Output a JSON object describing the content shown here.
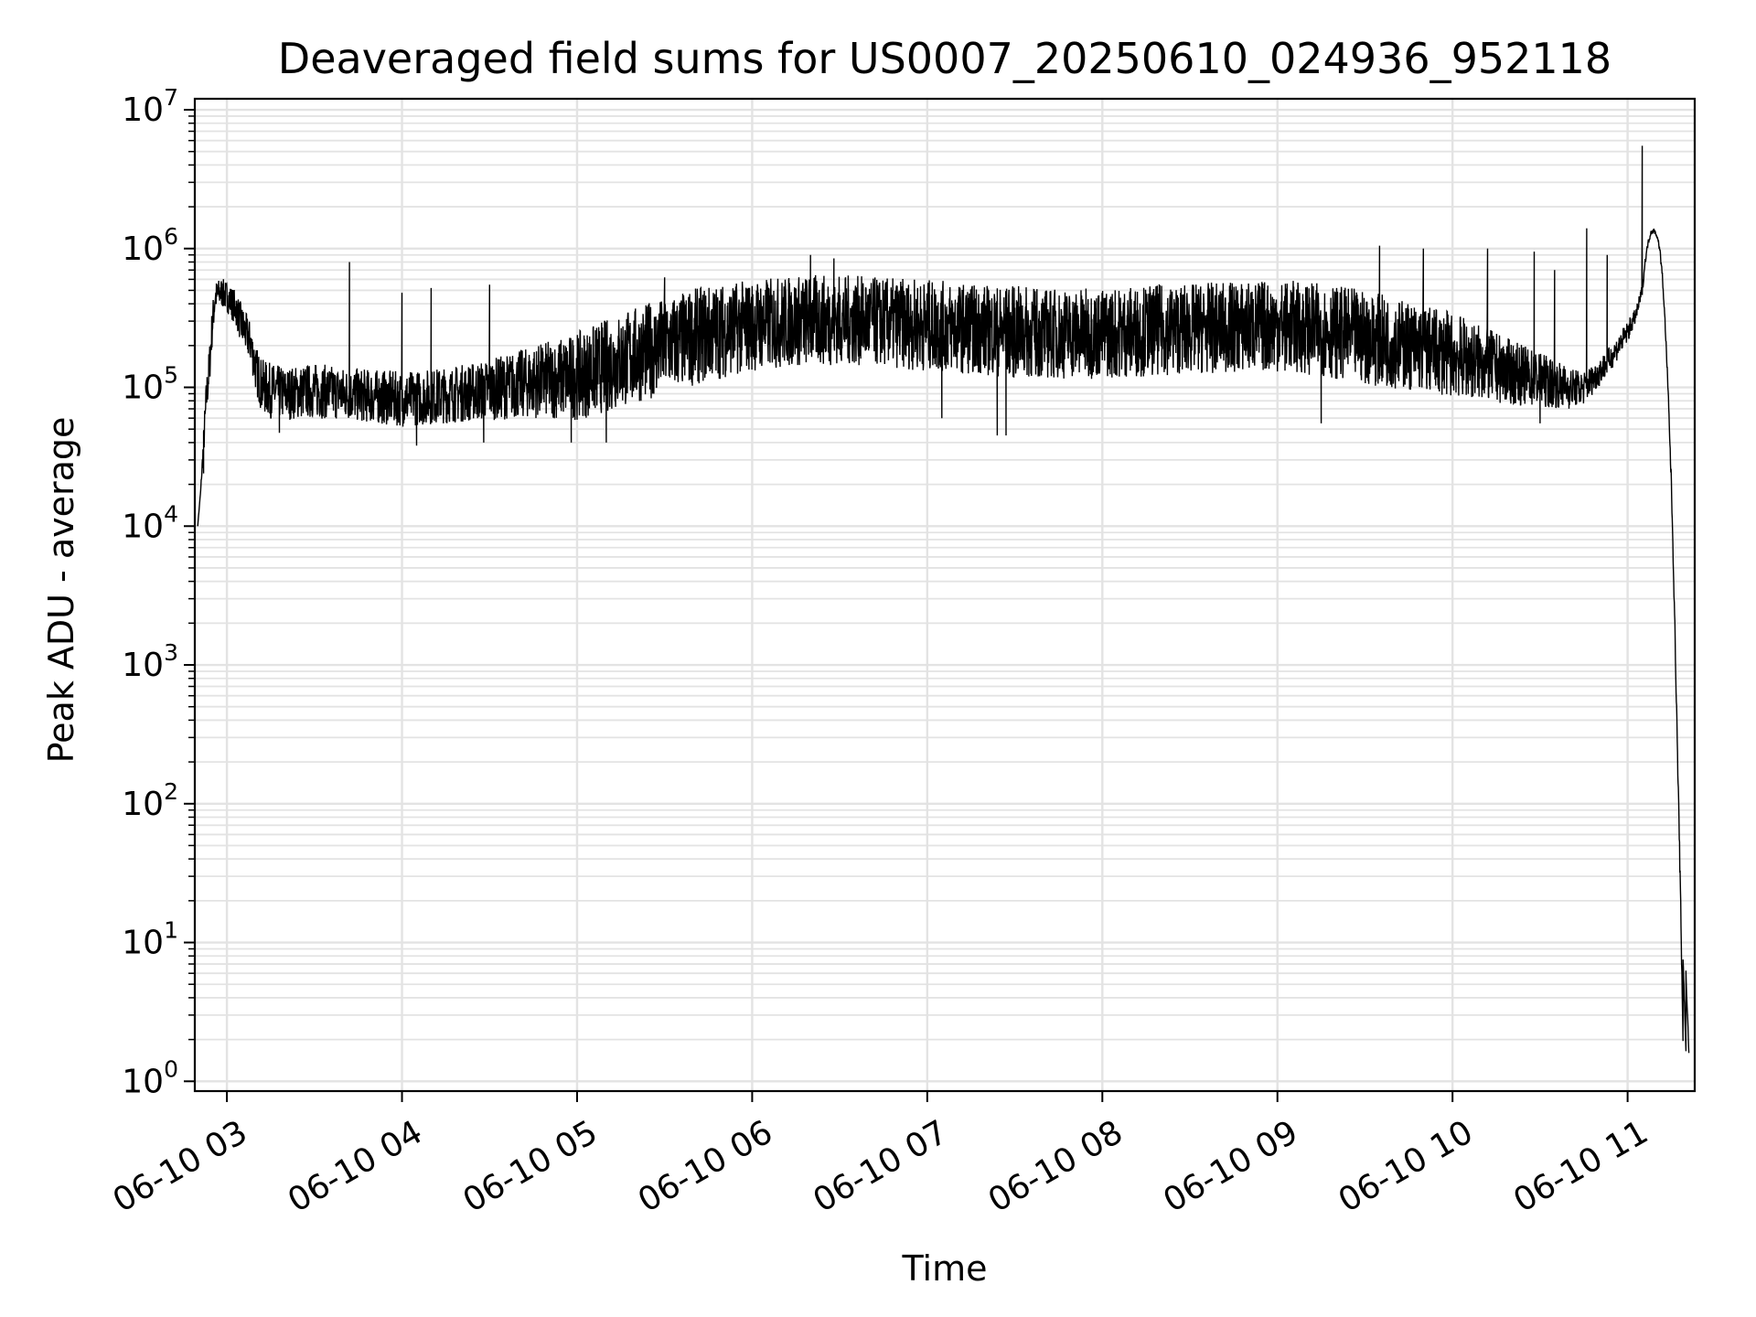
{
  "chart_data": {
    "type": "line",
    "title": "Deaveraged field sums for US0007_20250610_024936_952118",
    "xlabel": "Time",
    "ylabel": "Peak ADU - average",
    "x_scale": "time",
    "y_scale": "log",
    "grid": true,
    "grid_minor": true,
    "line_color": "#000000",
    "grid_color": "#e3e3e3",
    "xlim": [
      "2025-06-10 02:49",
      "2025-06-10 11:23"
    ],
    "ylim": [
      0.85,
      12000000
    ],
    "x_ticks": [
      {
        "t": "2025-06-10 03:00",
        "label": "06-10 03"
      },
      {
        "t": "2025-06-10 04:00",
        "label": "06-10 04"
      },
      {
        "t": "2025-06-10 05:00",
        "label": "06-10 05"
      },
      {
        "t": "2025-06-10 06:00",
        "label": "06-10 06"
      },
      {
        "t": "2025-06-10 07:00",
        "label": "06-10 07"
      },
      {
        "t": "2025-06-10 08:00",
        "label": "06-10 08"
      },
      {
        "t": "2025-06-10 09:00",
        "label": "06-10 09"
      },
      {
        "t": "2025-06-10 10:00",
        "label": "06-10 10"
      },
      {
        "t": "2025-06-10 11:00",
        "label": "06-10 11"
      }
    ],
    "y_ticks": [
      {
        "value": 1,
        "base": "10",
        "exp": "0"
      },
      {
        "value": 10,
        "base": "10",
        "exp": "1"
      },
      {
        "value": 100,
        "base": "10",
        "exp": "2"
      },
      {
        "value": 1000,
        "base": "10",
        "exp": "3"
      },
      {
        "value": 10000,
        "base": "10",
        "exp": "4"
      },
      {
        "value": 100000,
        "base": "10",
        "exp": "5"
      },
      {
        "value": 1000000,
        "base": "10",
        "exp": "6"
      },
      {
        "value": 10000000,
        "base": "10",
        "exp": "7"
      }
    ],
    "series": [
      {
        "x": [
          "2025-06-10 02:50",
          "2025-06-10 02:51",
          "2025-06-10 02:52",
          "2025-06-10 02:53",
          "2025-06-10 02:54",
          "2025-06-10 02:55",
          "2025-06-10 02:56",
          "2025-06-10 02:58",
          "2025-06-10 03:00",
          "2025-06-10 03:03",
          "2025-06-10 03:05",
          "2025-06-10 03:08",
          "2025-06-10 03:10",
          "2025-06-10 03:12",
          "2025-06-10 03:15",
          "2025-06-10 03:20",
          "2025-06-10 03:30",
          "2025-06-10 03:40",
          "2025-06-10 03:50",
          "2025-06-10 04:00",
          "2025-06-10 04:15",
          "2025-06-10 04:30",
          "2025-06-10 04:45",
          "2025-06-10 05:00",
          "2025-06-10 05:15",
          "2025-06-10 05:30",
          "2025-06-10 05:45",
          "2025-06-10 06:00",
          "2025-06-10 06:15",
          "2025-06-10 06:30",
          "2025-06-10 06:45",
          "2025-06-10 07:00",
          "2025-06-10 07:15",
          "2025-06-10 07:30",
          "2025-06-10 07:45",
          "2025-06-10 08:00",
          "2025-06-10 08:15",
          "2025-06-10 08:30",
          "2025-06-10 08:45",
          "2025-06-10 09:00",
          "2025-06-10 09:15",
          "2025-06-10 09:30",
          "2025-06-10 09:45",
          "2025-06-10 10:00",
          "2025-06-10 10:10",
          "2025-06-10 10:20",
          "2025-06-10 10:30",
          "2025-06-10 10:40",
          "2025-06-10 10:45",
          "2025-06-10 10:50",
          "2025-06-10 10:55",
          "2025-06-10 11:00",
          "2025-06-10 11:03",
          "2025-06-10 11:05",
          "2025-06-10 11:06",
          "2025-06-10 11:07",
          "2025-06-10 11:08",
          "2025-06-10 11:09",
          "2025-06-10 11:10",
          "2025-06-10 11:11",
          "2025-06-10 11:12",
          "2025-06-10 11:13",
          "2025-06-10 11:14",
          "2025-06-10 11:15",
          "2025-06-10 11:16",
          "2025-06-10 11:17",
          "2025-06-10 11:18",
          "2025-06-10 11:19",
          "2025-06-10 11:19",
          "2025-06-10 11:20",
          "2025-06-10 11:20",
          "2025-06-10 11:20",
          "2025-06-10 11:21"
        ],
        "y": [
          10000,
          18000,
          40000,
          90000,
          150000,
          300000,
          480000,
          520000,
          480000,
          400000,
          300000,
          220000,
          150000,
          110000,
          100000,
          95000,
          100000,
          95000,
          90000,
          85000,
          90000,
          95000,
          100000,
          100000,
          130000,
          180000,
          250000,
          320000,
          350000,
          380000,
          350000,
          320000,
          300000,
          280000,
          280000,
          280000,
          300000,
          320000,
          330000,
          350000,
          300000,
          250000,
          200000,
          180000,
          150000,
          120000,
          110000,
          95000,
          100000,
          130000,
          170000,
          250000,
          330000,
          500000,
          800000,
          1100000,
          1300000,
          1350000,
          1250000,
          1000000,
          600000,
          250000,
          80000,
          20000,
          3000,
          300,
          30,
          2,
          8,
          1.6,
          3,
          6,
          1.6
        ],
        "envelope_lo": [
          10000,
          18000,
          30000,
          60000,
          100000,
          200000,
          350000,
          380000,
          350000,
          280000,
          200000,
          150000,
          90000,
          65000,
          60000,
          58000,
          60000,
          58000,
          55000,
          52000,
          55000,
          58000,
          60000,
          58000,
          70000,
          90000,
          110000,
          130000,
          140000,
          145000,
          140000,
          130000,
          125000,
          115000,
          115000,
          115000,
          120000,
          125000,
          125000,
          130000,
          120000,
          105000,
          95000,
          85000,
          80000,
          75000,
          72000,
          70000,
          75000,
          100000,
          140000,
          210000,
          300000,
          450000,
          750000,
          1050000,
          1250000,
          1300000,
          1200000,
          950000,
          560000,
          230000,
          70000,
          18000,
          2500,
          250,
          25,
          1.8,
          7,
          1.5,
          2.8,
          5.5,
          1.5
        ],
        "envelope_hi": [
          10000,
          18000,
          50000,
          120000,
          200000,
          400000,
          580000,
          620000,
          580000,
          500000,
          400000,
          300000,
          200000,
          160000,
          150000,
          140000,
          150000,
          140000,
          135000,
          130000,
          140000,
          160000,
          200000,
          250000,
          350000,
          450000,
          550000,
          600000,
          650000,
          650000,
          620000,
          600000,
          560000,
          540000,
          520000,
          520000,
          550000,
          560000,
          580000,
          600000,
          560000,
          500000,
          420000,
          350000,
          280000,
          220000,
          180000,
          140000,
          130000,
          160000,
          210000,
          300000,
          380000,
          560000,
          860000,
          1150000,
          1380000,
          1400000,
          1300000,
          1050000,
          650000,
          270000,
          90000,
          22000,
          3300,
          340,
          34,
          2.3,
          8.5,
          1.7,
          3.2,
          6.5,
          1.7
        ],
        "spikes": [
          {
            "t": "2025-06-10 03:42",
            "y": 800000
          },
          {
            "t": "2025-06-10 04:00",
            "y": 480000
          },
          {
            "t": "2025-06-10 04:10",
            "y": 520000
          },
          {
            "t": "2025-06-10 04:30",
            "y": 550000
          },
          {
            "t": "2025-06-10 05:30",
            "y": 620000
          },
          {
            "t": "2025-06-10 06:20",
            "y": 900000
          },
          {
            "t": "2025-06-10 06:28",
            "y": 850000
          },
          {
            "t": "2025-06-10 09:35",
            "y": 1050000
          },
          {
            "t": "2025-06-10 09:50",
            "y": 1000000
          },
          {
            "t": "2025-06-10 10:12",
            "y": 1000000
          },
          {
            "t": "2025-06-10 10:28",
            "y": 950000
          },
          {
            "t": "2025-06-10 10:35",
            "y": 700000
          },
          {
            "t": "2025-06-10 10:46",
            "y": 1400000
          },
          {
            "t": "2025-06-10 10:53",
            "y": 900000
          },
          {
            "t": "2025-06-10 11:05",
            "y": 5500000
          }
        ],
        "dips": [
          {
            "t": "2025-06-10 02:52",
            "y": 24000
          },
          {
            "t": "2025-06-10 03:18",
            "y": 47000
          },
          {
            "t": "2025-06-10 04:05",
            "y": 38000
          },
          {
            "t": "2025-06-10 04:28",
            "y": 40000
          },
          {
            "t": "2025-06-10 04:58",
            "y": 40000
          },
          {
            "t": "2025-06-10 05:10",
            "y": 40000
          },
          {
            "t": "2025-06-10 07:05",
            "y": 60000
          },
          {
            "t": "2025-06-10 07:24",
            "y": 45000
          },
          {
            "t": "2025-06-10 07:27",
            "y": 45000
          },
          {
            "t": "2025-06-10 09:15",
            "y": 55000
          },
          {
            "t": "2025-06-10 10:30",
            "y": 55000
          }
        ]
      }
    ]
  }
}
